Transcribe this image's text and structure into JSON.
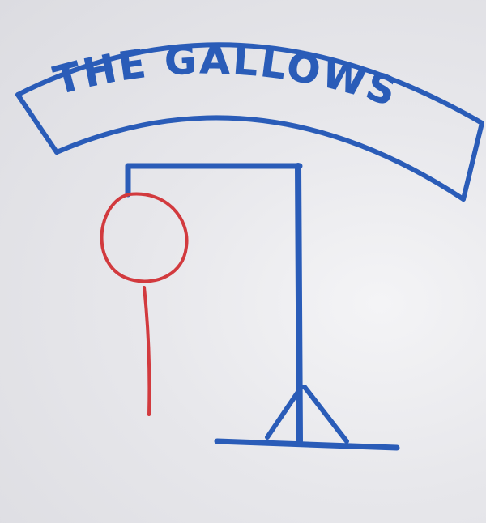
{
  "banner": {
    "title": "THE GALLOWS"
  },
  "colors": {
    "whiteboard": "#e9e9ed",
    "blue_marker": "#2a5cb8",
    "red_marker": "#d23a3e"
  },
  "game": {
    "drawn_parts": [
      "head",
      "body"
    ]
  }
}
